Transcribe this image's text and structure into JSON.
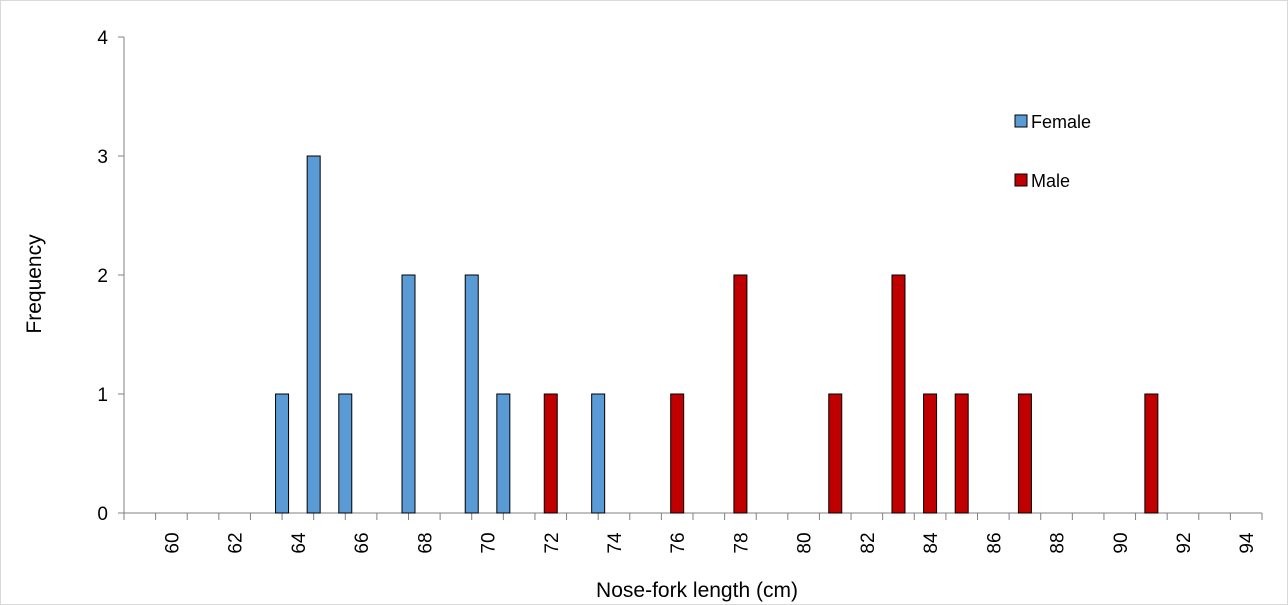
{
  "chart_data": {
    "type": "bar",
    "xlabel": "Nose-fork length (cm)",
    "ylabel": "Frequency",
    "ylim": [
      0,
      4
    ],
    "y_ticks": [
      0,
      1,
      2,
      3,
      4
    ],
    "x_tick_labels": [
      "60",
      "62",
      "64",
      "66",
      "68",
      "70",
      "72",
      "74",
      "76",
      "78",
      "80",
      "82",
      "84",
      "86",
      "88",
      "90",
      "92",
      "94"
    ],
    "grid": false,
    "legend_position": "right",
    "series": [
      {
        "name": "Female",
        "color": "#5b9bd5",
        "points": [
          {
            "x": 63.5,
            "y": 1
          },
          {
            "x": 64.5,
            "y": 3
          },
          {
            "x": 65.5,
            "y": 1
          },
          {
            "x": 67.5,
            "y": 2
          },
          {
            "x": 69.5,
            "y": 2
          },
          {
            "x": 70.5,
            "y": 1
          },
          {
            "x": 73.5,
            "y": 1
          }
        ]
      },
      {
        "name": "Male",
        "color": "#c00000",
        "points": [
          {
            "x": 72,
            "y": 1
          },
          {
            "x": 76,
            "y": 1
          },
          {
            "x": 78,
            "y": 2
          },
          {
            "x": 81,
            "y": 1
          },
          {
            "x": 83,
            "y": 2
          },
          {
            "x": 84,
            "y": 1
          },
          {
            "x": 85,
            "y": 1
          },
          {
            "x": 87,
            "y": 1
          },
          {
            "x": 91,
            "y": 1
          }
        ]
      }
    ]
  }
}
